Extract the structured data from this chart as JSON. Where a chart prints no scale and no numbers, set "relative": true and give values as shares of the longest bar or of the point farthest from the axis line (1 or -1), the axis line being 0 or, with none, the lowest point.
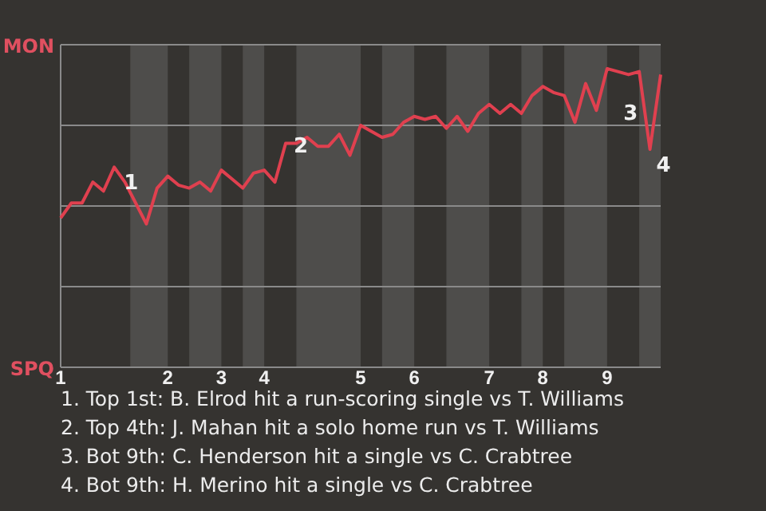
{
  "chart_data": {
    "type": "line",
    "relative": true,
    "marker": "none",
    "line_style": "solid",
    "categories": [
      "1",
      null,
      null,
      null,
      null,
      null,
      null,
      null,
      null,
      null,
      "2",
      null,
      null,
      null,
      null,
      "3",
      null,
      null,
      null,
      "4",
      null,
      null,
      null,
      null,
      null,
      null,
      null,
      null,
      "5",
      null,
      null,
      null,
      null,
      "6",
      null,
      null,
      null,
      null,
      null,
      null,
      "7",
      null,
      null,
      null,
      null,
      "8",
      null,
      null,
      null,
      null,
      null,
      "9",
      null,
      null,
      null,
      null,
      null
    ],
    "ref_lines": [
      {
        "axis": "y",
        "value": 0.27,
        "color": "#8a8a8a"
      },
      {
        "axis": "y",
        "value": 0.54,
        "color": "#8a8a8a"
      },
      {
        "axis": "y",
        "value": 0.81,
        "color": "#8a8a8a"
      },
      {
        "axis": "y",
        "value": 1.08,
        "color": "#8a8a8a"
      }
    ],
    "series": [
      {
        "color": "#e0404f",
        "values": [
          0.5,
          0.55,
          0.55,
          0.62,
          0.59,
          0.67,
          0.62,
          0.55,
          0.48,
          0.6,
          0.64,
          0.61,
          0.6,
          0.62,
          0.59,
          0.66,
          0.63,
          0.6,
          0.65,
          0.66,
          0.62,
          0.75,
          0.75,
          0.77,
          0.74,
          0.74,
          0.78,
          0.71,
          0.81,
          0.79,
          0.77,
          0.78,
          0.82,
          0.84,
          0.83,
          0.84,
          0.8,
          0.84,
          0.79,
          0.85,
          0.88,
          0.85,
          0.88,
          0.85,
          0.91,
          0.94,
          0.92,
          0.91,
          0.82,
          0.95,
          0.86,
          1,
          0.99,
          0.98,
          0.99,
          0.73,
          0.98
        ]
      }
    ],
    "annotations": [
      "MON",
      "SPQ",
      "1",
      "2",
      "3",
      "4",
      "1. Top 1st: B. Elrod hit a run-scoring single vs T. Williams",
      "2. Top 4th: J. Mahan hit a solo home run vs T. Williams",
      "3. Bot 9th: C. Henderson hit a single vs C. Crabtree",
      "4. Bot 9th: H. Merino hit a single vs C. Crabtree"
    ]
  }
}
